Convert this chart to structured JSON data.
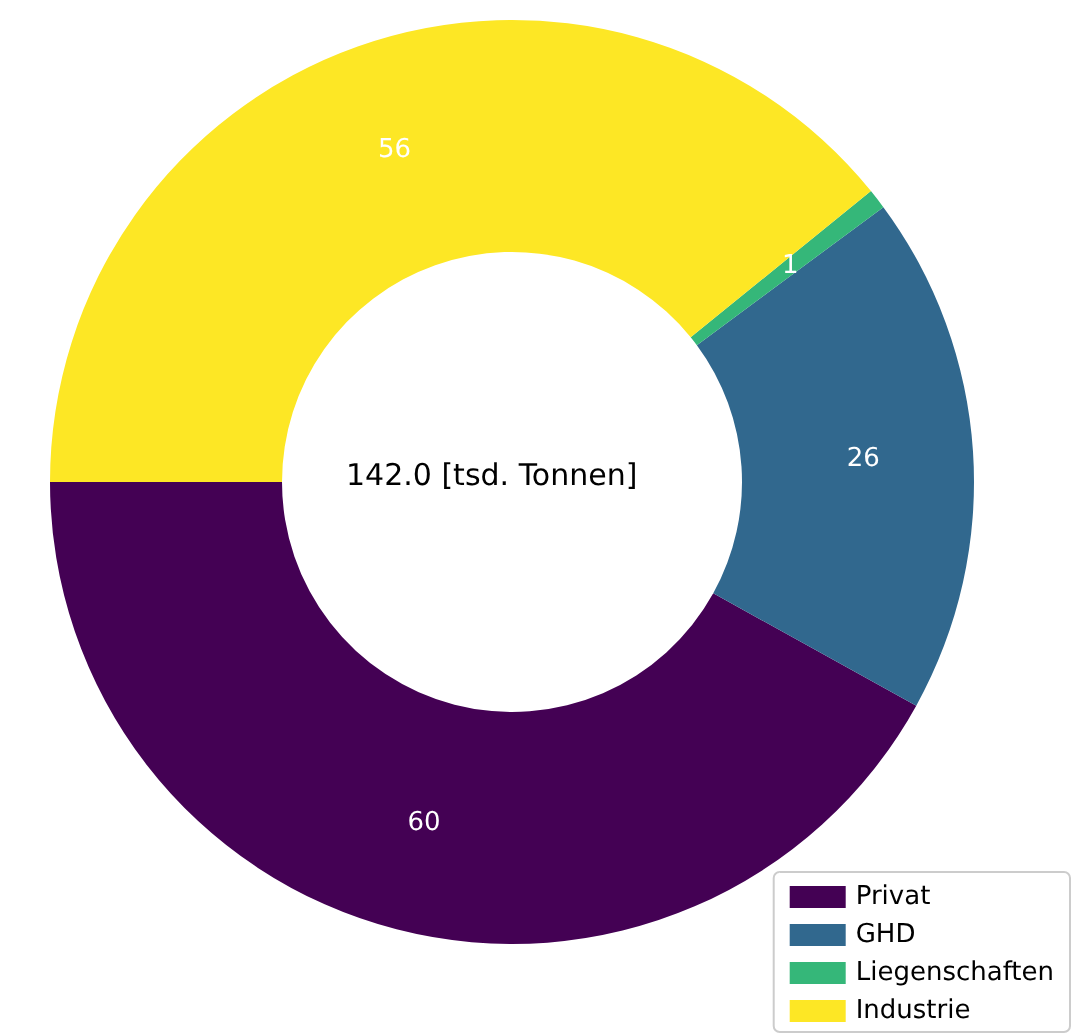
{
  "chart_data": {
    "type": "donut",
    "categories": [
      "Privat",
      "GHD",
      "Liegenschaften",
      "Industrie"
    ],
    "values": [
      60,
      26,
      1,
      56
    ],
    "colors": [
      "#440154",
      "#31688e",
      "#35b779",
      "#fde725"
    ],
    "data_labels": true,
    "legend": "bottom right",
    "annotations": [
      "142.0 [tsd. Tonnen]"
    ]
  }
}
